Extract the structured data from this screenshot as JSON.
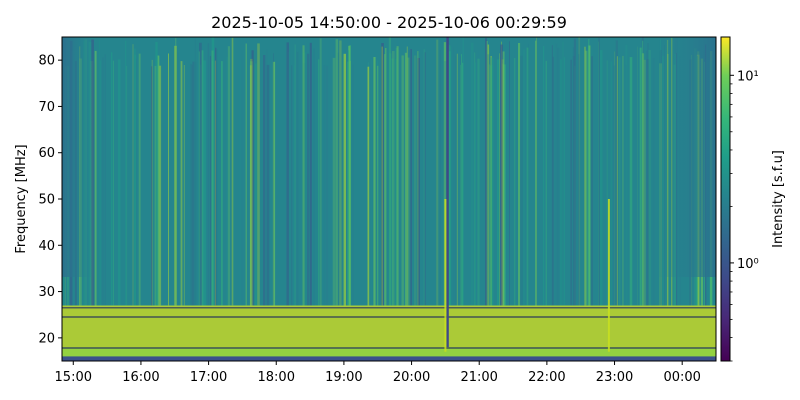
{
  "chart_data": {
    "type": "heatmap",
    "title": "2025-10-05 14:50:00 - 2025-10-06 00:29:59",
    "xlabel": "",
    "ylabel": "Frequency [MHz]",
    "x_range": [
      "2025-10-05 14:50:00",
      "2025-10-06 00:29:59"
    ],
    "x_tick_labels": [
      "15:00",
      "16:00",
      "17:00",
      "18:00",
      "19:00",
      "20:00",
      "21:00",
      "22:00",
      "23:00",
      "00:00"
    ],
    "x_tick_hours": [
      15,
      16,
      17,
      18,
      19,
      20,
      21,
      22,
      23,
      24
    ],
    "y_range": [
      15,
      85
    ],
    "y_ticks": [
      20,
      30,
      40,
      50,
      60,
      70,
      80
    ],
    "colorbar": {
      "label": "Intensity [s.f.u]",
      "scale": "log",
      "range": [
        0.3,
        16
      ],
      "major_ticks": [
        1,
        10
      ],
      "major_tick_labels": [
        "10⁰",
        "10¹"
      ],
      "colormap": "viridis"
    },
    "band_structure": [
      {
        "freq_min": 15,
        "freq_max": 16,
        "level": "low"
      },
      {
        "freq_min": 16,
        "freq_max": 18,
        "level": "high"
      },
      {
        "freq_min": 18,
        "freq_max": 27,
        "level": "very high"
      },
      {
        "freq_min": 27,
        "freq_max": 85,
        "level": "moderate"
      }
    ],
    "horizontal_lines_mhz": [
      17.8,
      24.5,
      26.5
    ],
    "notable_vertical_features": [
      {
        "time": "20:32",
        "type": "dark line"
      },
      {
        "time": "20:30",
        "type": "bright burst"
      },
      {
        "time": "22:55",
        "type": "bright burst"
      }
    ]
  }
}
